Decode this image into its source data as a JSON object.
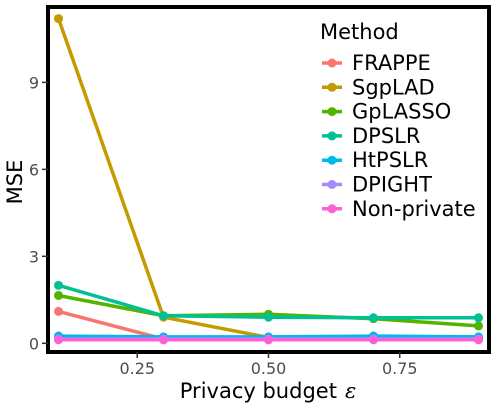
{
  "chart_data": {
    "type": "line",
    "xlabel": "Privacy budget",
    "xlabel_symbol": "ε",
    "ylabel": "MSE",
    "xlim": [
      0.08,
      0.92
    ],
    "ylim": [
      -0.3,
      11.6
    ],
    "x_ticks": [
      0.25,
      0.5,
      0.75
    ],
    "x_tick_labels": [
      "0.25",
      "0.50",
      "0.75"
    ],
    "y_ticks": [
      0,
      3,
      6,
      9
    ],
    "y_tick_labels": [
      "0",
      "3",
      "6",
      "9"
    ],
    "grid": false,
    "legend_title": "Method",
    "legend_position": "top-right",
    "x": [
      0.1,
      0.3,
      0.5,
      0.7,
      0.9
    ],
    "series": [
      {
        "name": "FRAPPE",
        "color": "#F8766D",
        "values": [
          1.1,
          0.15,
          0.15,
          0.15,
          0.15
        ]
      },
      {
        "name": "SgpLAD",
        "color": "#C49A00",
        "values": [
          11.2,
          0.9,
          0.2,
          0.2,
          0.2
        ]
      },
      {
        "name": "GpLASSO",
        "color": "#53B400",
        "values": [
          1.65,
          0.95,
          1.0,
          0.85,
          0.6
        ]
      },
      {
        "name": "DPSLR",
        "color": "#00C094",
        "values": [
          2.0,
          0.95,
          0.9,
          0.88,
          0.88
        ]
      },
      {
        "name": "HtPSLR",
        "color": "#00B6EB",
        "values": [
          0.25,
          0.22,
          0.22,
          0.25,
          0.22
        ]
      },
      {
        "name": "DPIGHT",
        "color": "#A58AFF",
        "values": [
          0.15,
          0.15,
          0.15,
          0.15,
          0.15
        ]
      },
      {
        "name": "Non-private",
        "color": "#FB61D7",
        "values": [
          0.12,
          0.12,
          0.12,
          0.12,
          0.12
        ]
      }
    ]
  }
}
